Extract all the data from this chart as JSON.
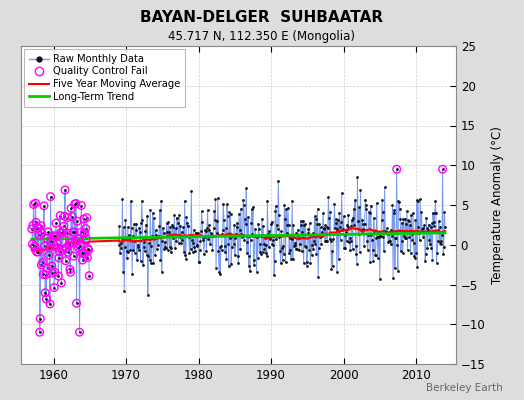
{
  "title": "BAYAN-DELGER  SUHBAATAR",
  "subtitle": "45.717 N, 112.350 E (Mongolia)",
  "ylabel": "Temperature Anomaly (°C)",
  "watermark": "Berkeley Earth",
  "ylim": [
    -15,
    25
  ],
  "yticks": [
    -15,
    -10,
    -5,
    0,
    5,
    10,
    15,
    20,
    25
  ],
  "xlim": [
    1955.5,
    2015.5
  ],
  "xticks": [
    1960,
    1970,
    1980,
    1990,
    2000,
    2010
  ],
  "start_year": 1957,
  "gap_start": 1965,
  "gap_end": 1969,
  "end_year": 2014,
  "raw_line_color": "#7799ee",
  "dot_color": "#111111",
  "qc_color": "#ff00ff",
  "ma_color": "#ff0000",
  "trend_color": "#00cc00",
  "bg_color": "#dddddd",
  "plot_bg_color": "#ffffff",
  "grid_color": "#cccccc",
  "seed": 42
}
